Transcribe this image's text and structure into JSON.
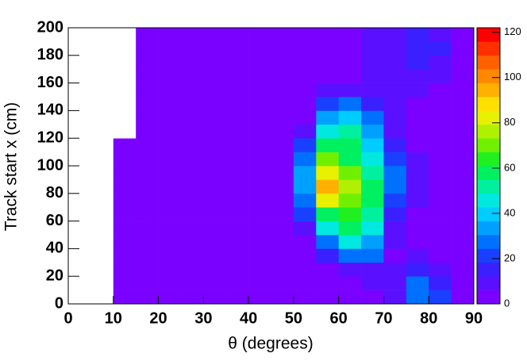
{
  "chart_data": {
    "type": "heatmap",
    "xlabel": "θ (degrees)",
    "ylabel": "Track start x (cm)",
    "xlim": [
      0,
      90
    ],
    "ylim": [
      0,
      200
    ],
    "xticks": [
      0,
      10,
      20,
      30,
      40,
      50,
      60,
      70,
      80,
      90
    ],
    "yticks": [
      0,
      20,
      40,
      60,
      80,
      100,
      120,
      140,
      160,
      180,
      200
    ],
    "zlim": [
      0,
      122
    ],
    "zticks": [
      0,
      20,
      40,
      60,
      80,
      100,
      120
    ],
    "palette": [
      "#7a00ff",
      "#5a10ff",
      "#3a20ff",
      "#1a40ff",
      "#0070ff",
      "#00a0ff",
      "#00ccff",
      "#00e8e0",
      "#00f0a0",
      "#00f060",
      "#20f020",
      "#70f000",
      "#b0f000",
      "#e8f000",
      "#ffe000",
      "#ffb000",
      "#ff8800",
      "#ff6000",
      "#ff3000",
      "#ff0000"
    ],
    "xbins": [
      0,
      5,
      10,
      15,
      20,
      25,
      30,
      35,
      40,
      45,
      50,
      55,
      60,
      65,
      70,
      75,
      80,
      85,
      90
    ],
    "ybins": [
      0,
      10,
      20,
      30,
      40,
      50,
      60,
      70,
      80,
      90,
      100,
      110,
      120,
      130,
      140,
      150,
      160,
      170,
      180,
      190,
      200
    ],
    "z": [
      [
        0,
        0,
        0.5,
        0.3,
        0.3,
        0.5,
        0.5,
        1,
        1,
        1,
        1,
        2,
        3,
        5,
        8,
        30,
        20,
        5
      ],
      [
        0,
        0,
        0.3,
        0.3,
        0.5,
        0.5,
        0.5,
        1,
        1,
        1,
        2,
        3,
        5,
        8,
        10,
        25,
        18,
        5
      ],
      [
        0,
        0,
        0.2,
        0.3,
        0.5,
        0.5,
        0.5,
        1,
        1,
        1,
        2,
        3,
        8,
        12,
        8,
        15,
        12,
        4
      ],
      [
        0,
        0,
        0.2,
        0.3,
        0.5,
        0.5,
        0.8,
        1,
        1,
        2,
        3,
        15,
        30,
        25,
        6,
        8,
        6,
        3
      ],
      [
        0,
        0,
        0.2,
        0.3,
        0.5,
        0.5,
        0.8,
        1,
        1,
        2,
        5,
        30,
        45,
        35,
        8,
        6,
        5,
        3
      ],
      [
        0,
        0,
        0.2,
        0.3,
        0.5,
        0.5,
        0.8,
        1,
        1,
        2,
        10,
        45,
        55,
        45,
        12,
        6,
        4,
        2
      ],
      [
        0,
        0,
        0.1,
        0.3,
        0.5,
        0.5,
        0.8,
        1,
        1.5,
        3,
        20,
        60,
        65,
        50,
        15,
        6,
        4,
        2
      ],
      [
        0,
        0,
        0.1,
        0.3,
        0.5,
        0.5,
        1,
        1,
        1.5,
        3,
        30,
        80,
        70,
        55,
        20,
        7,
        4,
        2
      ],
      [
        0,
        0,
        0.1,
        0.2,
        0.5,
        0.5,
        1,
        1,
        1.5,
        3,
        35,
        95,
        75,
        55,
        25,
        8,
        4,
        2
      ],
      [
        0,
        0,
        0.1,
        0.2,
        0.5,
        0.5,
        1,
        1,
        1.5,
        3,
        35,
        85,
        70,
        50,
        25,
        8,
        4,
        2
      ],
      [
        0,
        0,
        0.1,
        0.2,
        0.4,
        0.5,
        1,
        1,
        1.5,
        4,
        30,
        70,
        60,
        45,
        20,
        7,
        4,
        2
      ],
      [
        0,
        0,
        0.1,
        0.2,
        0.4,
        0.5,
        1,
        1,
        1.5,
        4,
        20,
        55,
        55,
        40,
        15,
        6,
        4,
        2
      ],
      [
        0,
        0,
        0,
        0.2,
        0.4,
        0.5,
        0.8,
        1,
        1.5,
        3,
        12,
        45,
        50,
        35,
        10,
        6,
        4,
        3
      ],
      [
        0,
        0,
        0,
        0.2,
        0.3,
        0.5,
        0.8,
        1,
        1.5,
        3,
        6,
        35,
        40,
        25,
        8,
        6,
        5,
        3
      ],
      [
        0,
        0,
        0,
        0.1,
        0.3,
        0.5,
        0.8,
        1,
        1.5,
        3,
        4,
        20,
        25,
        15,
        8,
        6,
        5,
        4
      ],
      [
        0,
        0,
        0,
        0.1,
        0.3,
        0.5,
        0.8,
        1,
        1.5,
        2,
        3,
        10,
        12,
        8,
        8,
        7,
        6,
        4
      ],
      [
        0,
        0,
        0,
        0.1,
        0.3,
        0.5,
        0.8,
        1,
        1.5,
        2,
        3,
        5,
        6,
        7,
        8,
        10,
        8,
        5
      ],
      [
        0,
        0,
        0,
        0.1,
        0.3,
        0.5,
        0.8,
        1,
        1.5,
        2,
        3,
        4,
        5,
        7,
        10,
        15,
        12,
        6
      ],
      [
        0,
        0,
        0,
        0.1,
        0.3,
        0.5,
        0.8,
        1,
        1.5,
        2,
        3,
        4,
        5,
        8,
        12,
        18,
        14,
        6
      ],
      [
        0,
        0,
        0,
        0.1,
        0.2,
        0.4,
        0.8,
        1,
        1.5,
        2,
        3,
        4,
        5,
        8,
        12,
        15,
        12,
        5
      ]
    ]
  }
}
